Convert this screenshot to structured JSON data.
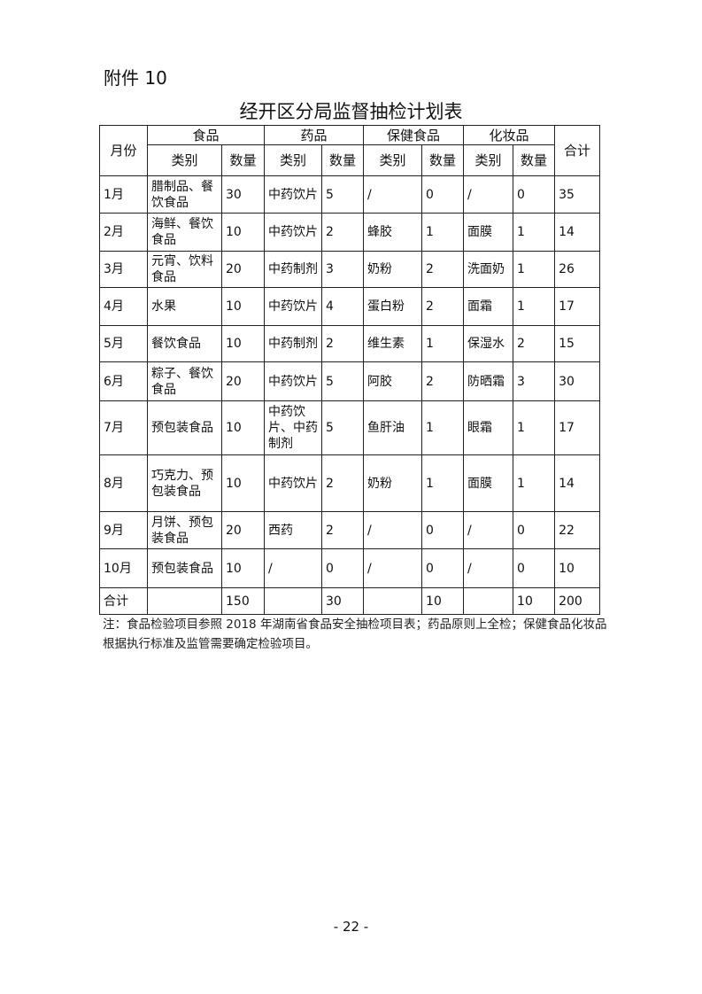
{
  "attachment": "附件 10",
  "title": "经开区分局监督抽检计划表",
  "headers": {
    "month": "月份",
    "groups": [
      "食品",
      "药品",
      "保健食品",
      "化妆品"
    ],
    "category": "类别",
    "quantity": "数量",
    "total": "合计"
  },
  "rows": [
    {
      "month": "1月",
      "cells": [
        "腊制品、餐饮食品",
        "30",
        "中药饮片",
        "5",
        "/",
        "0",
        "/",
        "0",
        "35"
      ]
    },
    {
      "month": "2月",
      "cells": [
        "海鲜、餐饮食品",
        "10",
        "中药饮片",
        "2",
        "蜂胶",
        "1",
        "面膜",
        "1",
        "14"
      ]
    },
    {
      "month": "3月",
      "cells": [
        "元宵、饮料食品",
        "20",
        "中药制剂",
        "3",
        "奶粉",
        "2",
        "洗面奶",
        "1",
        "26"
      ]
    },
    {
      "month": "4月",
      "cells": [
        "水果",
        "10",
        "中药饮片",
        "4",
        "蛋白粉",
        "2",
        "面霜",
        "1",
        "17"
      ]
    },
    {
      "month": "5月",
      "cells": [
        "餐饮食品",
        "10",
        "中药制剂",
        "2",
        "维生素",
        "1",
        "保湿水",
        "2",
        "15"
      ]
    },
    {
      "month": "6月",
      "cells": [
        "粽子、餐饮食品",
        "20",
        "中药饮片",
        "5",
        "阿胶",
        "2",
        "防晒霜",
        "3",
        "30"
      ]
    },
    {
      "month": "7月",
      "cells": [
        "预包装食品",
        "10",
        "中药饮片、中药制剂",
        "5",
        "鱼肝油",
        "1",
        "眼霜",
        "1",
        "17"
      ]
    },
    {
      "month": "8月",
      "cells": [
        "巧克力、预包装食品",
        "10",
        "中药饮片",
        "2",
        "奶粉",
        "1",
        "面膜",
        "1",
        "14"
      ]
    },
    {
      "month": "9月",
      "cells": [
        "月饼、预包装食品",
        "20",
        "西药",
        "2",
        "/",
        "0",
        "/",
        "0",
        "22"
      ]
    },
    {
      "month": "10月",
      "cells": [
        "预包装食品",
        "10",
        "/",
        "0",
        "/",
        "0",
        "/",
        "0",
        "10"
      ]
    },
    {
      "month": "合计",
      "cells": [
        "",
        "150",
        "",
        "30",
        "",
        "10",
        "",
        "10",
        "200"
      ]
    }
  ],
  "note": "注：食品检验项目参照 2018 年湖南省食品安全抽检项目表；药品原则上全检；保健食品化妆品根据执行标准及监管需要确定检验项目。",
  "page_number": "- 22 -"
}
